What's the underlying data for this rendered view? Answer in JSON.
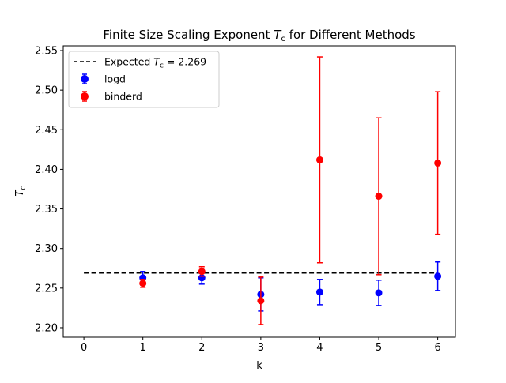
{
  "chart_data": {
    "type": "scatter",
    "title": {
      "prefix": "Finite Size Scaling Exponent ",
      "var": "T",
      "sub": "c",
      "suffix": " for Different Methods"
    },
    "xlabel": "k",
    "ylabel": {
      "var": "T",
      "sub": "c"
    },
    "xlim": [
      -0.35,
      6.3
    ],
    "ylim": [
      2.188,
      2.556
    ],
    "xticks": [
      0,
      1,
      2,
      3,
      4,
      5,
      6
    ],
    "yticks": [
      2.2,
      2.25,
      2.3,
      2.35,
      2.4,
      2.45,
      2.5,
      2.55
    ],
    "reference_line": {
      "label_prefix": "Expected ",
      "label_var": "T",
      "label_sub": "c",
      "label_suffix": " = 2.269",
      "value": 2.269,
      "x_range": [
        0,
        6
      ],
      "color": "#000000",
      "style": "dashed"
    },
    "series": [
      {
        "name": "logd",
        "color": "#0000ff",
        "x": [
          1,
          2,
          3,
          4,
          5,
          6
        ],
        "y": [
          2.263,
          2.263,
          2.242,
          2.245,
          2.244,
          2.265
        ],
        "yerr": [
          0.008,
          0.008,
          0.021,
          0.016,
          0.016,
          0.018
        ]
      },
      {
        "name": "binderd",
        "color": "#ff0000",
        "x": [
          1,
          2,
          3,
          4,
          5,
          6
        ],
        "y": [
          2.256,
          2.271,
          2.234,
          2.412,
          2.366,
          2.408
        ],
        "yerr": [
          0.005,
          0.006,
          0.03,
          0.13,
          0.099,
          0.09
        ]
      }
    ],
    "legend_position": "upper-left",
    "grid": false
  }
}
